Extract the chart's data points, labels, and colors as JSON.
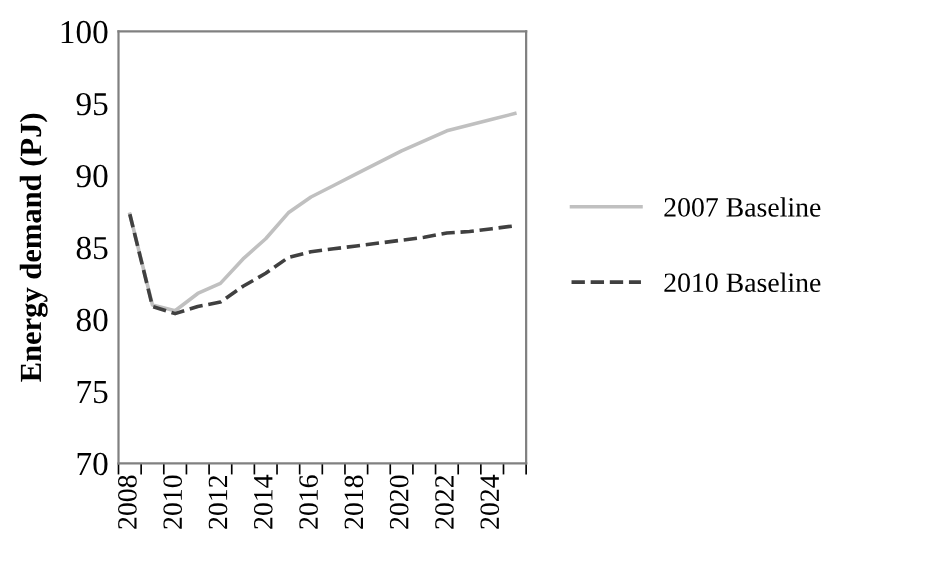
{
  "chart_data": {
    "type": "line",
    "ylabel": "Energy demand (PJ)",
    "categories": [
      "2008",
      null,
      "2010",
      null,
      "2012",
      null,
      "2014",
      null,
      "2016",
      null,
      "2018",
      null,
      "2020",
      null,
      "2022",
      null,
      "2024",
      null
    ],
    "series": [
      {
        "name": "2007 Baseline",
        "color": "#c0c0c0",
        "line_style": "solid",
        "values": [
          87.3,
          81.0,
          80.6,
          81.8,
          82.5,
          84.2,
          85.6,
          87.4,
          88.5,
          89.3,
          90.1,
          90.9,
          91.7,
          92.4,
          93.1,
          93.5,
          93.9,
          94.3
        ]
      },
      {
        "name": "2010 Baseline",
        "color": "#404040",
        "line_style": "dashed",
        "values": [
          87.3,
          80.9,
          80.4,
          80.9,
          81.2,
          82.3,
          83.2,
          84.3,
          84.7,
          84.9,
          85.1,
          85.3,
          85.5,
          85.7,
          86.0,
          86.1,
          86.3,
          86.5
        ]
      }
    ],
    "ylim": [
      70,
      100
    ],
    "yticks": [
      70,
      75,
      80,
      85,
      90,
      95,
      100
    ],
    "grid": false,
    "legend": "right",
    "marker": "none"
  }
}
